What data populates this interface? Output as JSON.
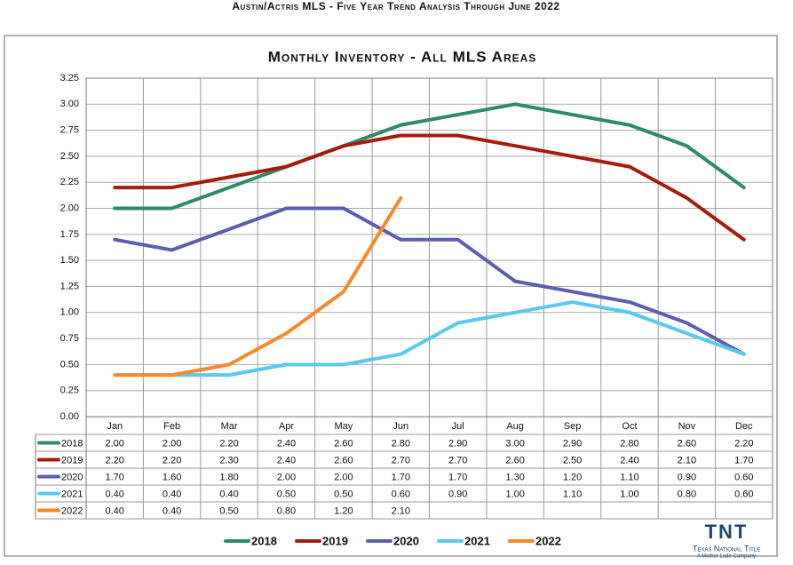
{
  "header": "Austin/Actris MLS - Five Year Trend Analysis Through June 2022",
  "logo": {
    "mark": "TNT",
    "name": "Texas National Title",
    "tagline": "A Mother Lode Company"
  },
  "chart_data": {
    "type": "line",
    "title": "Monthly Inventory - All MLS Areas",
    "categories": [
      "Jan",
      "Feb",
      "Mar",
      "Apr",
      "May",
      "Jun",
      "Jul",
      "Aug",
      "Sep",
      "Oct",
      "Nov",
      "Dec"
    ],
    "series": [
      {
        "name": "2018",
        "color": "#2e8b6a",
        "values": [
          2.0,
          2.0,
          2.2,
          2.4,
          2.6,
          2.8,
          2.9,
          3.0,
          2.9,
          2.8,
          2.6,
          2.2
        ],
        "value_labels": [
          "2.00",
          "2.00",
          "2.20",
          "2.40",
          "2.60",
          "2.80",
          "2.90",
          "3.00",
          "2.90",
          "2.80",
          "2.60",
          "2.20"
        ]
      },
      {
        "name": "2019",
        "color": "#a51c0e",
        "values": [
          2.2,
          2.2,
          2.3,
          2.4,
          2.6,
          2.7,
          2.7,
          2.6,
          2.5,
          2.4,
          2.1,
          1.7
        ],
        "value_labels": [
          "2.20",
          "2.20",
          "2.30",
          "2.40",
          "2.60",
          "2.70",
          "2.70",
          "2.60",
          "2.50",
          "2.40",
          "2.10",
          "1.70"
        ]
      },
      {
        "name": "2020",
        "color": "#5b5fae",
        "values": [
          1.7,
          1.6,
          1.8,
          2.0,
          2.0,
          1.7,
          1.7,
          1.3,
          1.2,
          1.1,
          0.9,
          0.6
        ],
        "value_labels": [
          "1.70",
          "1.60",
          "1.80",
          "2.00",
          "2.00",
          "1.70",
          "1.70",
          "1.30",
          "1.20",
          "1.10",
          "0.90",
          "0.60"
        ]
      },
      {
        "name": "2021",
        "color": "#5bc8ee",
        "values": [
          0.4,
          0.4,
          0.4,
          0.5,
          0.5,
          0.6,
          0.9,
          1.0,
          1.1,
          1.0,
          0.8,
          0.6
        ],
        "value_labels": [
          "0.40",
          "0.40",
          "0.40",
          "0.50",
          "0.50",
          "0.60",
          "0.90",
          "1.00",
          "1.10",
          "1.00",
          "0.80",
          "0.60"
        ]
      },
      {
        "name": "2022",
        "color": "#f58a2a",
        "values": [
          0.4,
          0.4,
          0.5,
          0.8,
          1.2,
          2.1,
          null,
          null,
          null,
          null,
          null,
          null
        ],
        "value_labels": [
          "0.40",
          "0.40",
          "0.50",
          "0.80",
          "1.20",
          "2.10",
          null,
          null,
          null,
          null,
          null,
          null
        ]
      }
    ],
    "ylim": [
      0,
      3.25
    ],
    "yticks": [
      {
        "value": 0,
        "label": "0.00"
      },
      0.25,
      {
        "value": 0.5,
        "label": "0.50"
      },
      0.75,
      {
        "value": 1,
        "label": "1.00"
      },
      1.25,
      {
        "value": 1.5,
        "label": "1.50"
      },
      1.75,
      {
        "value": 2,
        "label": "2.00"
      },
      2.25,
      {
        "value": 2.5,
        "label": "2.50"
      },
      2.75,
      {
        "value": 3,
        "label": "3.00"
      },
      3.25
    ],
    "grid": true,
    "legend": "bottom"
  }
}
